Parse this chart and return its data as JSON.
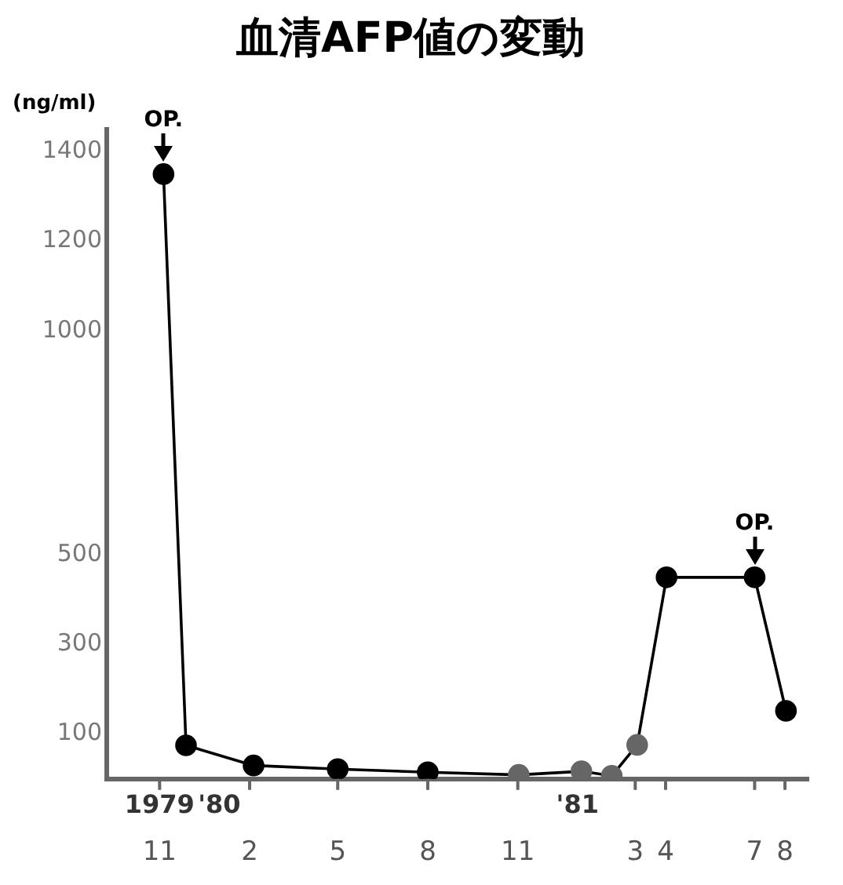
{
  "chart_data": {
    "type": "line",
    "title": "血清AFP値の変動",
    "ylabel": "(ng/ml)",
    "x": [
      "1979-11-05",
      "1979-11-28",
      "1980-02-05",
      "1980-05-01",
      "1980-08-01",
      "1980-11-02",
      "1981-01-05",
      "1981-02-05",
      "1981-03-03",
      "1981-04-02",
      "1981-07-01",
      "1981-08-02"
    ],
    "series": [
      {
        "color": "#000000",
        "colors": [
          "#000000",
          "#000000",
          "#000000",
          "#000000",
          "#000000",
          "#666666",
          "#666666",
          "#666666",
          "#666666",
          "#000000",
          "#000000",
          "#000000"
        ],
        "values": [
          1350,
          75,
          30,
          22,
          15,
          9,
          17,
          7,
          76,
          450,
          450,
          152
        ]
      }
    ],
    "xlim": [
      "1979-09-08",
      "1981-08-25"
    ],
    "xticks": [
      {
        "value": "1979-11-01",
        "label": "11"
      },
      {
        "value": "1980-02-01",
        "label": "2"
      },
      {
        "value": "1980-05-01",
        "label": "5"
      },
      {
        "value": "1980-08-01",
        "label": "8"
      },
      {
        "value": "1980-11-01",
        "label": "11"
      },
      {
        "value": "1981-03-01",
        "label": "3"
      },
      {
        "value": "1981-04-01",
        "label": "4"
      },
      {
        "value": "1981-07-01",
        "label": "7"
      },
      {
        "value": "1981-08-01",
        "label": "8"
      }
    ],
    "x2lim": [
      "1979-09-08",
      "1981-08-25"
    ],
    "x2ticks": [
      {
        "value": "1979-11-01",
        "label": "1979"
      },
      {
        "value": "1980-01-01",
        "label": "'80"
      },
      {
        "value": "1981-01-01",
        "label": "'81"
      }
    ],
    "ylim": [
      0,
      1450
    ],
    "yticks": [
      100,
      300,
      500,
      1000,
      1200,
      1400
    ],
    "annotations": [
      {
        "text": "OP.",
        "x": "1979-11-05",
        "y": 1350
      },
      {
        "text": "OP.",
        "x": "1981-07-01",
        "y": 450
      }
    ],
    "marker": "circle"
  }
}
